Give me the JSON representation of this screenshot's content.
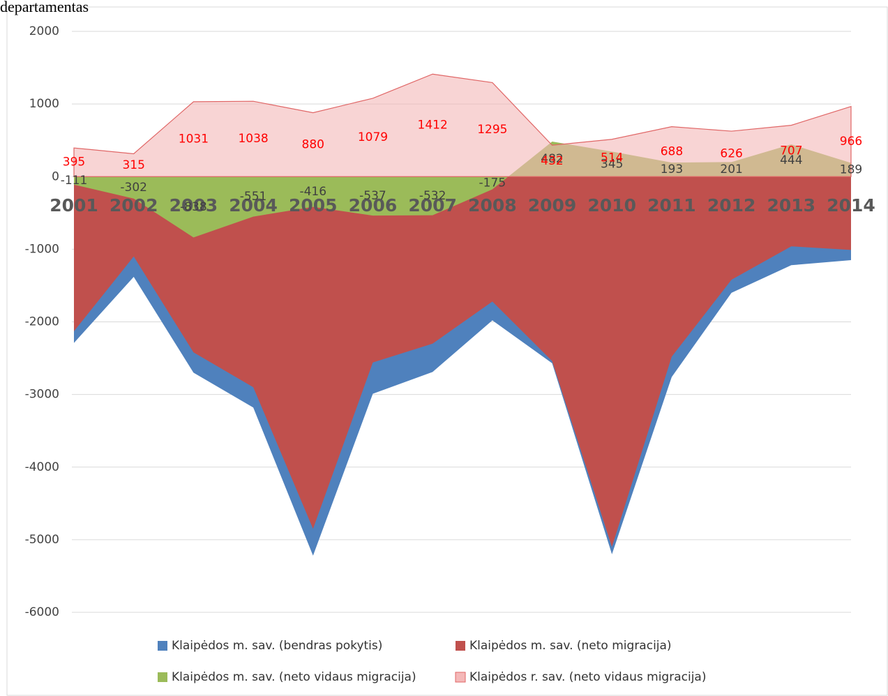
{
  "chart_data": {
    "type": "area",
    "title": "departamentas",
    "categories": [
      "2001",
      "2002",
      "2003",
      "2004",
      "2005",
      "2006",
      "2007",
      "2008",
      "2009",
      "2010",
      "2011",
      "2012",
      "2013",
      "2014"
    ],
    "series": [
      {
        "name": "Klaipėdos m. sav. (bendras pokytis)",
        "color": "#4f81bd",
        "values": [
          -2290,
          -1380,
          -2700,
          -3180,
          -5220,
          -2990,
          -2690,
          -1980,
          -2570,
          -5200,
          -2760,
          -1600,
          -1220,
          -1150
        ]
      },
      {
        "name": "Klaipėdos m. sav. (neto migracija)",
        "color": "#c0504d",
        "values": [
          -2130,
          -1100,
          -2420,
          -2900,
          -4850,
          -2560,
          -2300,
          -1720,
          -2540,
          -5100,
          -2480,
          -1420,
          -960,
          -1010
        ]
      },
      {
        "name": "Klaipėdos m. sav. (neto vidaus migracija)",
        "color": "#9bbb59",
        "labels": true,
        "label_color": "#404040",
        "values": [
          -111,
          -302,
          -838,
          -551,
          -416,
          -537,
          -532,
          -175,
          482,
          345,
          193,
          201,
          444,
          189
        ]
      },
      {
        "name": "Klaipėdos r. sav. (neto vidaus migracija)",
        "color": "#f4b8b8",
        "labels": true,
        "label_color": "#ff0000",
        "values": [
          395,
          315,
          1031,
          1038,
          880,
          1079,
          1412,
          1295,
          432,
          514,
          688,
          626,
          707,
          966
        ]
      }
    ],
    "ylim": [
      -6000,
      2000
    ],
    "yticks": [
      -6000,
      -5000,
      -4000,
      -3000,
      -2000,
      -1000,
      0,
      1000,
      2000
    ],
    "grid": true,
    "legend": "bottom"
  }
}
